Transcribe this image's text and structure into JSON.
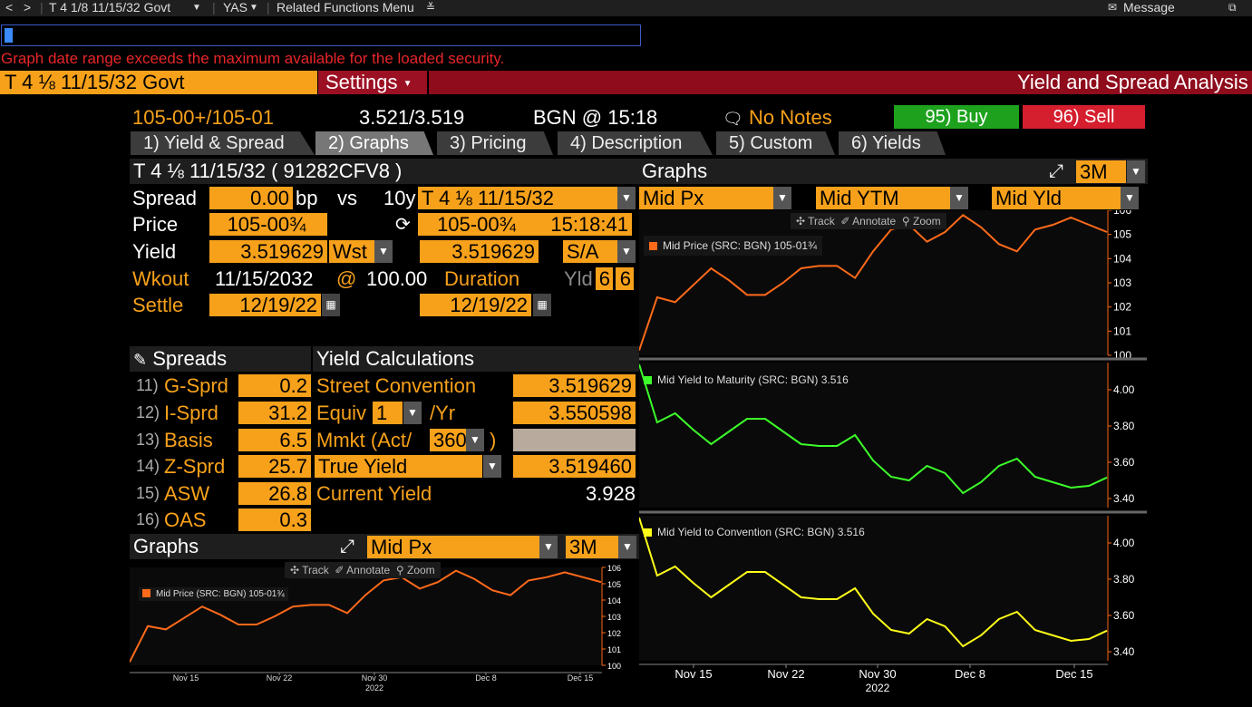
{
  "nav": {
    "back": "<",
    "forward": ">",
    "security": "T 4 1/8 11/15/32 Govt",
    "function": "YAS",
    "related": "Related Functions Menu",
    "message": "Message"
  },
  "error": "Graph date range exceeds the maximum available for the loaded security.",
  "header": {
    "security": "T 4 ⅛  11/15/32 Govt",
    "settings": "Settings",
    "title": "Yield and Spread Analysis"
  },
  "quote": {
    "price": "105-00+/105-01",
    "yield": "3.521/3.519",
    "source_time": "BGN @ 15:18",
    "notes": "No Notes",
    "buy": "95) Buy",
    "sell": "96) Sell"
  },
  "tabs": [
    "1) Yield & Spread",
    "2) Graphs",
    "3) Pricing",
    "4) Description",
    "5) Custom",
    "6) Yields"
  ],
  "bond": {
    "title": "T 4 ⅛  11/15/32 ( 91282CFV8 )",
    "spread_label": "Spread",
    "spread_value": "0.00",
    "spread_unit": "bp",
    "vs": "vs",
    "bench_tenor": "10y",
    "bench": "T 4 ⅛  11/15/32",
    "price_label": "Price",
    "price": "105-00¾",
    "bench_price": "105-00¾",
    "bench_time": "15:18:41",
    "yield_label": "Yield",
    "yield": "3.519629",
    "yield_type": "Wst",
    "bench_yield": "3.519629",
    "freq": "S/A",
    "wkout_label": "Wkout",
    "wkout_date": "11/15/2032",
    "at": "@",
    "wkout_price": "100.00",
    "duration_label": "Duration",
    "yld_label": "Yld",
    "yld_a": "6",
    "yld_b": "6",
    "settle_label": "Settle",
    "settle": "12/19/22",
    "bench_settle": "12/19/22"
  },
  "spreads": {
    "title": "Spreads",
    "items": [
      {
        "num": "11)",
        "label": "G-Sprd",
        "value": "0.2"
      },
      {
        "num": "12)",
        "label": "I-Sprd",
        "value": "31.2"
      },
      {
        "num": "13)",
        "label": "Basis",
        "value": "6.5"
      },
      {
        "num": "14)",
        "label": "Z-Sprd",
        "value": "25.7"
      },
      {
        "num": "15)",
        "label": "ASW",
        "value": "26.8"
      },
      {
        "num": "16)",
        "label": "OAS",
        "value": "0.3"
      }
    ]
  },
  "yieldcalc": {
    "title": "Yield Calculations",
    "street": "Street Convention",
    "street_value": "3.519629",
    "equiv": "Equiv",
    "equiv_sel": "1",
    "per_yr": "/Yr",
    "equiv_value": "3.550598",
    "mmkt": "Mmkt (Act/",
    "mmkt_sel": "360",
    "mmkt_close": ")",
    "true_yield": "True Yield",
    "true_value": "3.519460",
    "current_yield": "Current Yield",
    "current_value": "3.928"
  },
  "small_graph": {
    "title": "Graphs",
    "metric": "Mid Px",
    "period": "3M",
    "tools": [
      "Track",
      "Annotate",
      "Zoom"
    ],
    "legend": "Mid Price (SRC: BGN)  105-01¾"
  },
  "big_graph": {
    "title": "Graphs",
    "period": "3M",
    "selectors": [
      "Mid Px",
      "Mid YTM",
      "Mid Yld"
    ],
    "tools": [
      "Track",
      "Annotate",
      "Zoom"
    ],
    "legends": [
      "Mid Price (SRC: BGN) 105-01¾",
      "Mid Yield to Maturity (SRC: BGN) 3.516",
      "Mid Yield to Convention (SRC: BGN) 3.516"
    ],
    "x_ticks": [
      "Nov 15",
      "Nov 22",
      "Nov 30",
      "Dec 8",
      "Dec 15"
    ],
    "x_year": "2022"
  },
  "colors": {
    "orange": "#f7a11a",
    "price_line": "#ff6a1a",
    "ytm_line": "#3cff2a",
    "ytc_line": "#ffff1a",
    "header_red": "#8e0c1c",
    "buy": "#1ea21e",
    "sell": "#d51e2e"
  },
  "chart_data": [
    {
      "type": "line",
      "series": [
        {
          "name": "Mid Price (SRC: BGN)",
          "x": [
            "11/10",
            "11/11",
            "11/14",
            "11/15",
            "11/16",
            "11/17",
            "11/18",
            "11/21",
            "11/22",
            "11/23",
            "11/25",
            "11/28",
            "11/29",
            "11/30",
            "12/1",
            "12/2",
            "12/5",
            "12/6",
            "12/7",
            "12/8",
            "12/9",
            "12/12",
            "12/13",
            "12/14",
            "12/15",
            "12/16",
            "12/19"
          ],
          "values": [
            100.2,
            102.4,
            102.2,
            102.9,
            103.6,
            103.1,
            102.5,
            102.5,
            103.0,
            103.6,
            103.7,
            103.7,
            103.2,
            104.3,
            105.2,
            105.4,
            104.7,
            105.1,
            105.8,
            105.3,
            104.6,
            104.3,
            105.2,
            105.4,
            105.7,
            105.4,
            105.1
          ]
        }
      ],
      "ylim": [
        100,
        106
      ]
    },
    {
      "type": "line",
      "series": [
        {
          "name": "Mid Yield to Maturity (SRC: BGN)",
          "x": [
            "11/10",
            "11/11",
            "11/14",
            "11/15",
            "11/16",
            "11/17",
            "11/18",
            "11/21",
            "11/22",
            "11/23",
            "11/25",
            "11/28",
            "11/29",
            "11/30",
            "12/1",
            "12/2",
            "12/5",
            "12/6",
            "12/7",
            "12/8",
            "12/9",
            "12/12",
            "12/13",
            "12/14",
            "12/15",
            "12/16",
            "12/19"
          ],
          "values": [
            4.14,
            3.82,
            3.87,
            3.78,
            3.7,
            3.77,
            3.84,
            3.84,
            3.77,
            3.7,
            3.69,
            3.69,
            3.75,
            3.61,
            3.52,
            3.5,
            3.58,
            3.54,
            3.43,
            3.49,
            3.58,
            3.62,
            3.52,
            3.49,
            3.46,
            3.47,
            3.516
          ]
        }
      ],
      "ylim": [
        3.35,
        4.15
      ]
    },
    {
      "type": "line",
      "series": [
        {
          "name": "Mid Yield to Convention (SRC: BGN)",
          "x": [
            "11/10",
            "11/11",
            "11/14",
            "11/15",
            "11/16",
            "11/17",
            "11/18",
            "11/21",
            "11/22",
            "11/23",
            "11/25",
            "11/28",
            "11/29",
            "11/30",
            "12/1",
            "12/2",
            "12/5",
            "12/6",
            "12/7",
            "12/8",
            "12/9",
            "12/12",
            "12/13",
            "12/14",
            "12/15",
            "12/16",
            "12/19"
          ],
          "values": [
            4.14,
            3.82,
            3.87,
            3.78,
            3.7,
            3.77,
            3.84,
            3.84,
            3.77,
            3.7,
            3.69,
            3.69,
            3.75,
            3.61,
            3.52,
            3.5,
            3.58,
            3.54,
            3.43,
            3.49,
            3.58,
            3.62,
            3.52,
            3.49,
            3.46,
            3.47,
            3.516
          ]
        }
      ],
      "ylim": [
        3.35,
        4.15
      ]
    }
  ]
}
